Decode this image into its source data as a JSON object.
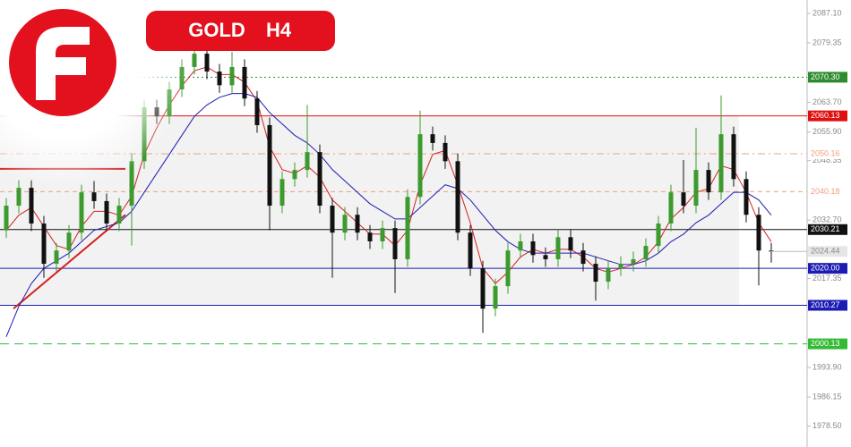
{
  "chart_data": {
    "type": "candlestick",
    "title": "GOLD",
    "timeframe": "H4",
    "ylim": [
      1972.98,
      2090.63
    ],
    "yticks": [
      {
        "value": 2087.1,
        "label": "2087.10"
      },
      {
        "value": 2079.35,
        "label": "2079.35"
      },
      {
        "value": 2063.7,
        "label": "2063.70"
      },
      {
        "value": 2055.9,
        "label": "2055.90"
      },
      {
        "value": 2048.35,
        "label": "2048.35"
      },
      {
        "value": 2032.7,
        "label": "2032.70"
      },
      {
        "value": 2017.35,
        "label": "2017.35"
      },
      {
        "value": 1993.9,
        "label": "1993.90"
      },
      {
        "value": 1986.15,
        "label": "1986.15"
      },
      {
        "value": 1978.5,
        "label": "1978.50"
      }
    ],
    "bull_color": "#3c9a2e",
    "bear_color": "#111111",
    "open": [
      2030.0,
      2036.5,
      2041.2,
      2031.8,
      2021.2,
      2024.7,
      2029.4,
      2040.0,
      2037.7,
      2031.8,
      2036.5,
      2048.2,
      2062.4,
      2060.0,
      2067.1,
      2073.0,
      2076.5,
      2071.8,
      2068.2,
      2073.0,
      2064.7,
      2057.7,
      2036.5,
      2043.5,
      2045.9,
      2050.6,
      2036.5,
      2029.4,
      2034.1,
      2029.4,
      2027.1,
      2030.6,
      2022.4,
      2038.8,
      2055.3,
      2053.0,
      2048.2,
      2029.4,
      2020.0,
      2009.4,
      2015.3,
      2024.7,
      2027.1,
      2023.5,
      2022.4,
      2028.2,
      2024.7,
      2021.2,
      2016.5,
      2020.0,
      2021.2,
      2022.4,
      2025.9,
      2031.8,
      2040.0,
      2036.5,
      2045.9,
      2040.0,
      2055.3,
      2043.5,
      2034.1,
      2024.7
    ],
    "high": [
      2038.5,
      2043.2,
      2043.2,
      2033.8,
      2026.7,
      2031.4,
      2042.0,
      2043.0,
      2039.7,
      2038.5,
      2050.2,
      2064.4,
      2064.4,
      2069.1,
      2075.0,
      2080.0,
      2078.5,
      2073.8,
      2077.0,
      2075.0,
      2066.7,
      2059.7,
      2045.5,
      2047.9,
      2063.0,
      2052.6,
      2038.5,
      2036.1,
      2036.1,
      2031.4,
      2032.6,
      2032.6,
      2040.8,
      2061.5,
      2057.3,
      2055.0,
      2050.2,
      2031.4,
      2022.0,
      2017.3,
      2026.7,
      2029.1,
      2029.1,
      2025.5,
      2030.2,
      2030.2,
      2026.7,
      2023.2,
      2022.0,
      2023.2,
      2024.4,
      2027.9,
      2033.8,
      2042.0,
      2048.5,
      2057.0,
      2047.9,
      2065.5,
      2057.3,
      2045.5,
      2036.1,
      2026.7
    ],
    "low": [
      2028.0,
      2034.5,
      2029.8,
      2017.5,
      2019.2,
      2022.7,
      2027.4,
      2035.7,
      2029.8,
      2029.8,
      2026.0,
      2046.2,
      2058.0,
      2058.0,
      2065.1,
      2071.0,
      2069.8,
      2066.2,
      2066.2,
      2062.7,
      2055.7,
      2030.0,
      2034.5,
      2041.5,
      2043.9,
      2034.5,
      2017.5,
      2027.4,
      2027.4,
      2025.1,
      2025.1,
      2013.5,
      2020.4,
      2036.8,
      2051.0,
      2046.2,
      2027.4,
      2018.0,
      2003.0,
      2007.4,
      2013.3,
      2022.7,
      2021.5,
      2020.4,
      2020.4,
      2022.7,
      2019.2,
      2011.5,
      2014.5,
      2018.0,
      2019.2,
      2020.4,
      2023.9,
      2029.8,
      2034.5,
      2034.5,
      2038.0,
      2038.0,
      2041.5,
      2032.1,
      2015.5,
      2021.5
    ],
    "close": [
      2036.5,
      2041.2,
      2031.8,
      2021.2,
      2024.7,
      2029.4,
      2040.0,
      2037.7,
      2031.8,
      2036.5,
      2048.2,
      2062.4,
      2060.0,
      2067.1,
      2073.0,
      2076.5,
      2071.8,
      2068.2,
      2073.0,
      2064.7,
      2057.7,
      2036.5,
      2043.5,
      2045.9,
      2050.6,
      2036.5,
      2029.4,
      2034.1,
      2029.4,
      2027.1,
      2030.6,
      2022.4,
      2038.8,
      2055.3,
      2053.0,
      2048.2,
      2029.4,
      2020.0,
      2009.4,
      2015.3,
      2024.7,
      2027.1,
      2023.5,
      2022.4,
      2028.2,
      2024.7,
      2021.2,
      2016.5,
      2020.0,
      2021.2,
      2022.4,
      2025.9,
      2031.8,
      2040.0,
      2036.5,
      2045.9,
      2040.0,
      2055.3,
      2043.5,
      2034.1,
      2024.7,
      2024.4
    ],
    "series": [
      {
        "color": "#d42020",
        "values": [
          2030,
          2034,
          2036,
          2031,
          2026,
          2025,
          2031,
          2035,
          2035,
          2034,
          2039,
          2050,
          2057,
          2063,
          2068,
          2072,
          2073,
          2071,
          2071,
          2069,
          2064,
          2052,
          2046,
          2045,
          2047,
          2044,
          2038,
          2035,
          2032,
          2029,
          2029,
          2026,
          2030,
          2042,
          2050,
          2051,
          2042,
          2032,
          2020,
          2016,
          2019,
          2023,
          2025,
          2024,
          2025,
          2025,
          2023,
          2020,
          2019,
          2020,
          2021,
          2023,
          2027,
          2033,
          2036,
          2040,
          2041,
          2047,
          2046,
          2040,
          2032,
          2027
        ]
      },
      {
        "color": "#1c1cb4",
        "values": [
          2002,
          2010,
          2016,
          2020,
          2022,
          2024,
          2027,
          2030,
          2031,
          2032,
          2035,
          2040,
          2045,
          2050,
          2055,
          2060,
          2063,
          2065,
          2066,
          2066,
          2065,
          2061,
          2058,
          2055,
          2053,
          2050,
          2046,
          2043,
          2040,
          2037,
          2035,
          2033,
          2033,
          2036,
          2039,
          2042,
          2041,
          2038,
          2034,
          2030,
          2027,
          2025,
          2024,
          2024,
          2024,
          2024,
          2024,
          2023,
          2022,
          2021,
          2021,
          2022,
          2024,
          2027,
          2029,
          2032,
          2034,
          2037,
          2040,
          2040,
          2038,
          2034
        ]
      }
    ],
    "levels": [
      {
        "value": 2070.3,
        "label": "2070.30",
        "color": "#2e8b2e",
        "dash": "2,3",
        "label_filled": true
      },
      {
        "value": 2060.13,
        "label": "2060.13",
        "color": "#e01010",
        "dash": "",
        "label_filled": true
      },
      {
        "value": 2050.16,
        "label": "2050.16",
        "color": "#f0a080",
        "dash": "8,4,2,4",
        "label_filled": false
      },
      {
        "value": 2040.18,
        "label": "2040.18",
        "color": "#f0a080",
        "dash": "5,4",
        "label_filled": false
      },
      {
        "value": 2030.21,
        "label": "2030.21",
        "color": "#111111",
        "dash": "",
        "label_filled": true
      },
      {
        "value": 2020.0,
        "label": "2020.00",
        "color": "#1c1cb4",
        "dash": "",
        "label_filled": true
      },
      {
        "value": 2010.27,
        "label": "2010.27",
        "color": "#1c1cb4",
        "dash": "",
        "label_filled": true
      },
      {
        "value": 2000.13,
        "label": "2000.13",
        "color": "#33bb33",
        "dash": "10,6",
        "label_filled": true
      }
    ],
    "current_price": {
      "value": 2024.44,
      "label": "2024.44"
    },
    "range_box": {
      "top": 2060.13,
      "bottom": 2010.27
    },
    "trendline": {
      "start": 2009.4,
      "end": 2034.1
    },
    "resistance_line": 2046.2
  }
}
